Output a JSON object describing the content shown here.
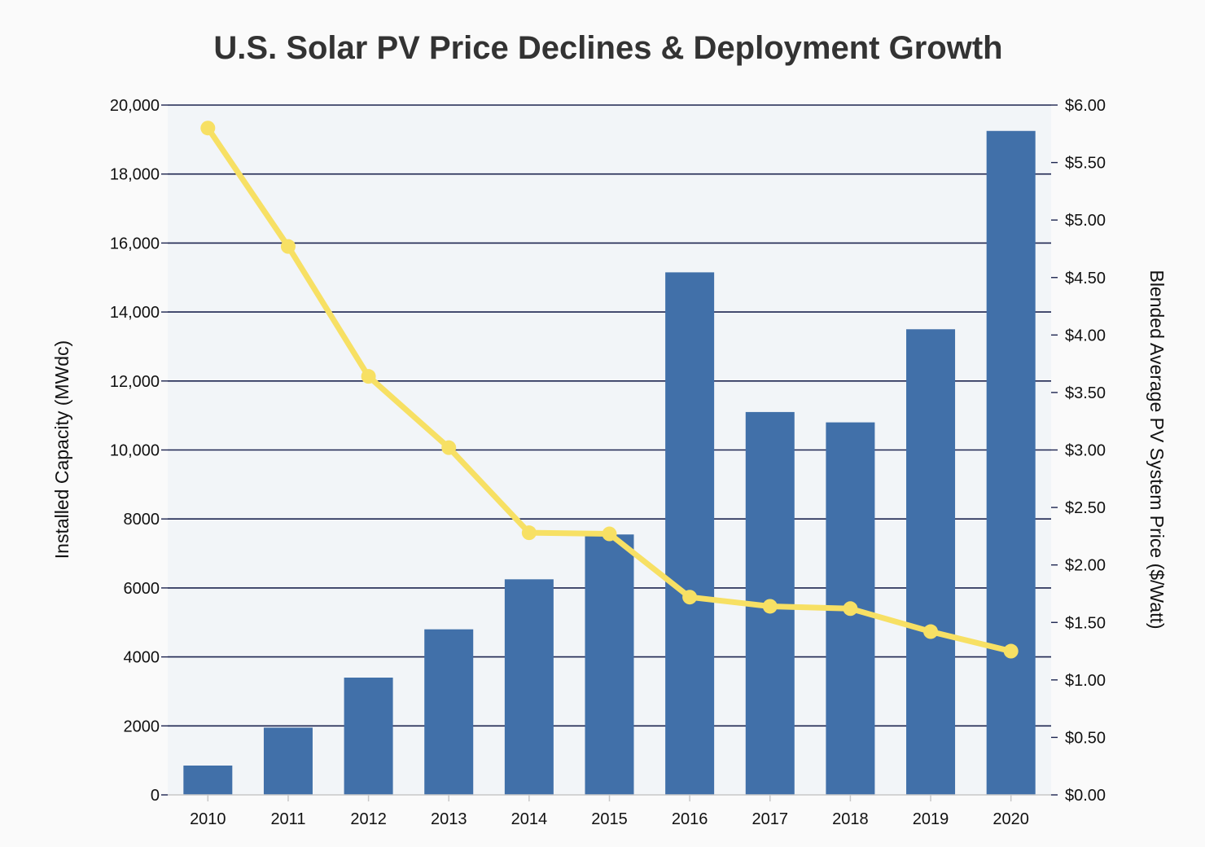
{
  "chart_data": {
    "type": "bar",
    "title": "U.S. Solar PV Price Declines & Deployment Growth",
    "xlabel": "",
    "ylabel": "Installed Capacity (MWdc)",
    "y2label": "Blended Average PV System Price ($/Watt)",
    "ylim": [
      0,
      20000
    ],
    "y2lim": [
      0,
      6
    ],
    "grid": true,
    "legend": "none",
    "categories": [
      "2010",
      "2011",
      "2012",
      "2013",
      "2014",
      "2015",
      "2016",
      "2017",
      "2018",
      "2019",
      "2020"
    ],
    "series": [
      {
        "name": "Installed Capacity (MWdc)",
        "kind": "bar",
        "axis": "left",
        "values": [
          850,
          1950,
          3400,
          4800,
          6250,
          7550,
          15150,
          11100,
          10800,
          13500,
          19250
        ]
      },
      {
        "name": "Blended Average PV System Price ($/Watt)",
        "kind": "line",
        "axis": "right",
        "values": [
          5.8,
          4.77,
          3.64,
          3.02,
          2.28,
          2.27,
          1.72,
          1.64,
          1.62,
          1.42,
          1.25
        ]
      }
    ],
    "y_ticks": [
      "0",
      "2000",
      "4000",
      "6000",
      "8000",
      "10,000",
      "12,000",
      "14,000",
      "16,000",
      "18,000",
      "20,000"
    ],
    "y2_ticks": [
      "$0.00",
      "$0.50",
      "$1.00",
      "$1.50",
      "$2.00",
      "$2.50",
      "$3.00",
      "$3.50",
      "$4.00",
      "$4.50",
      "$5.00",
      "$5.50",
      "$6.00"
    ],
    "colors": {
      "bar": "#4170a9",
      "line": "#f7e064",
      "grid": "#1d2550",
      "plot_bg": "#f2f5f8",
      "page_bg": "#fafafa",
      "axis": "#c8c8c8"
    }
  }
}
